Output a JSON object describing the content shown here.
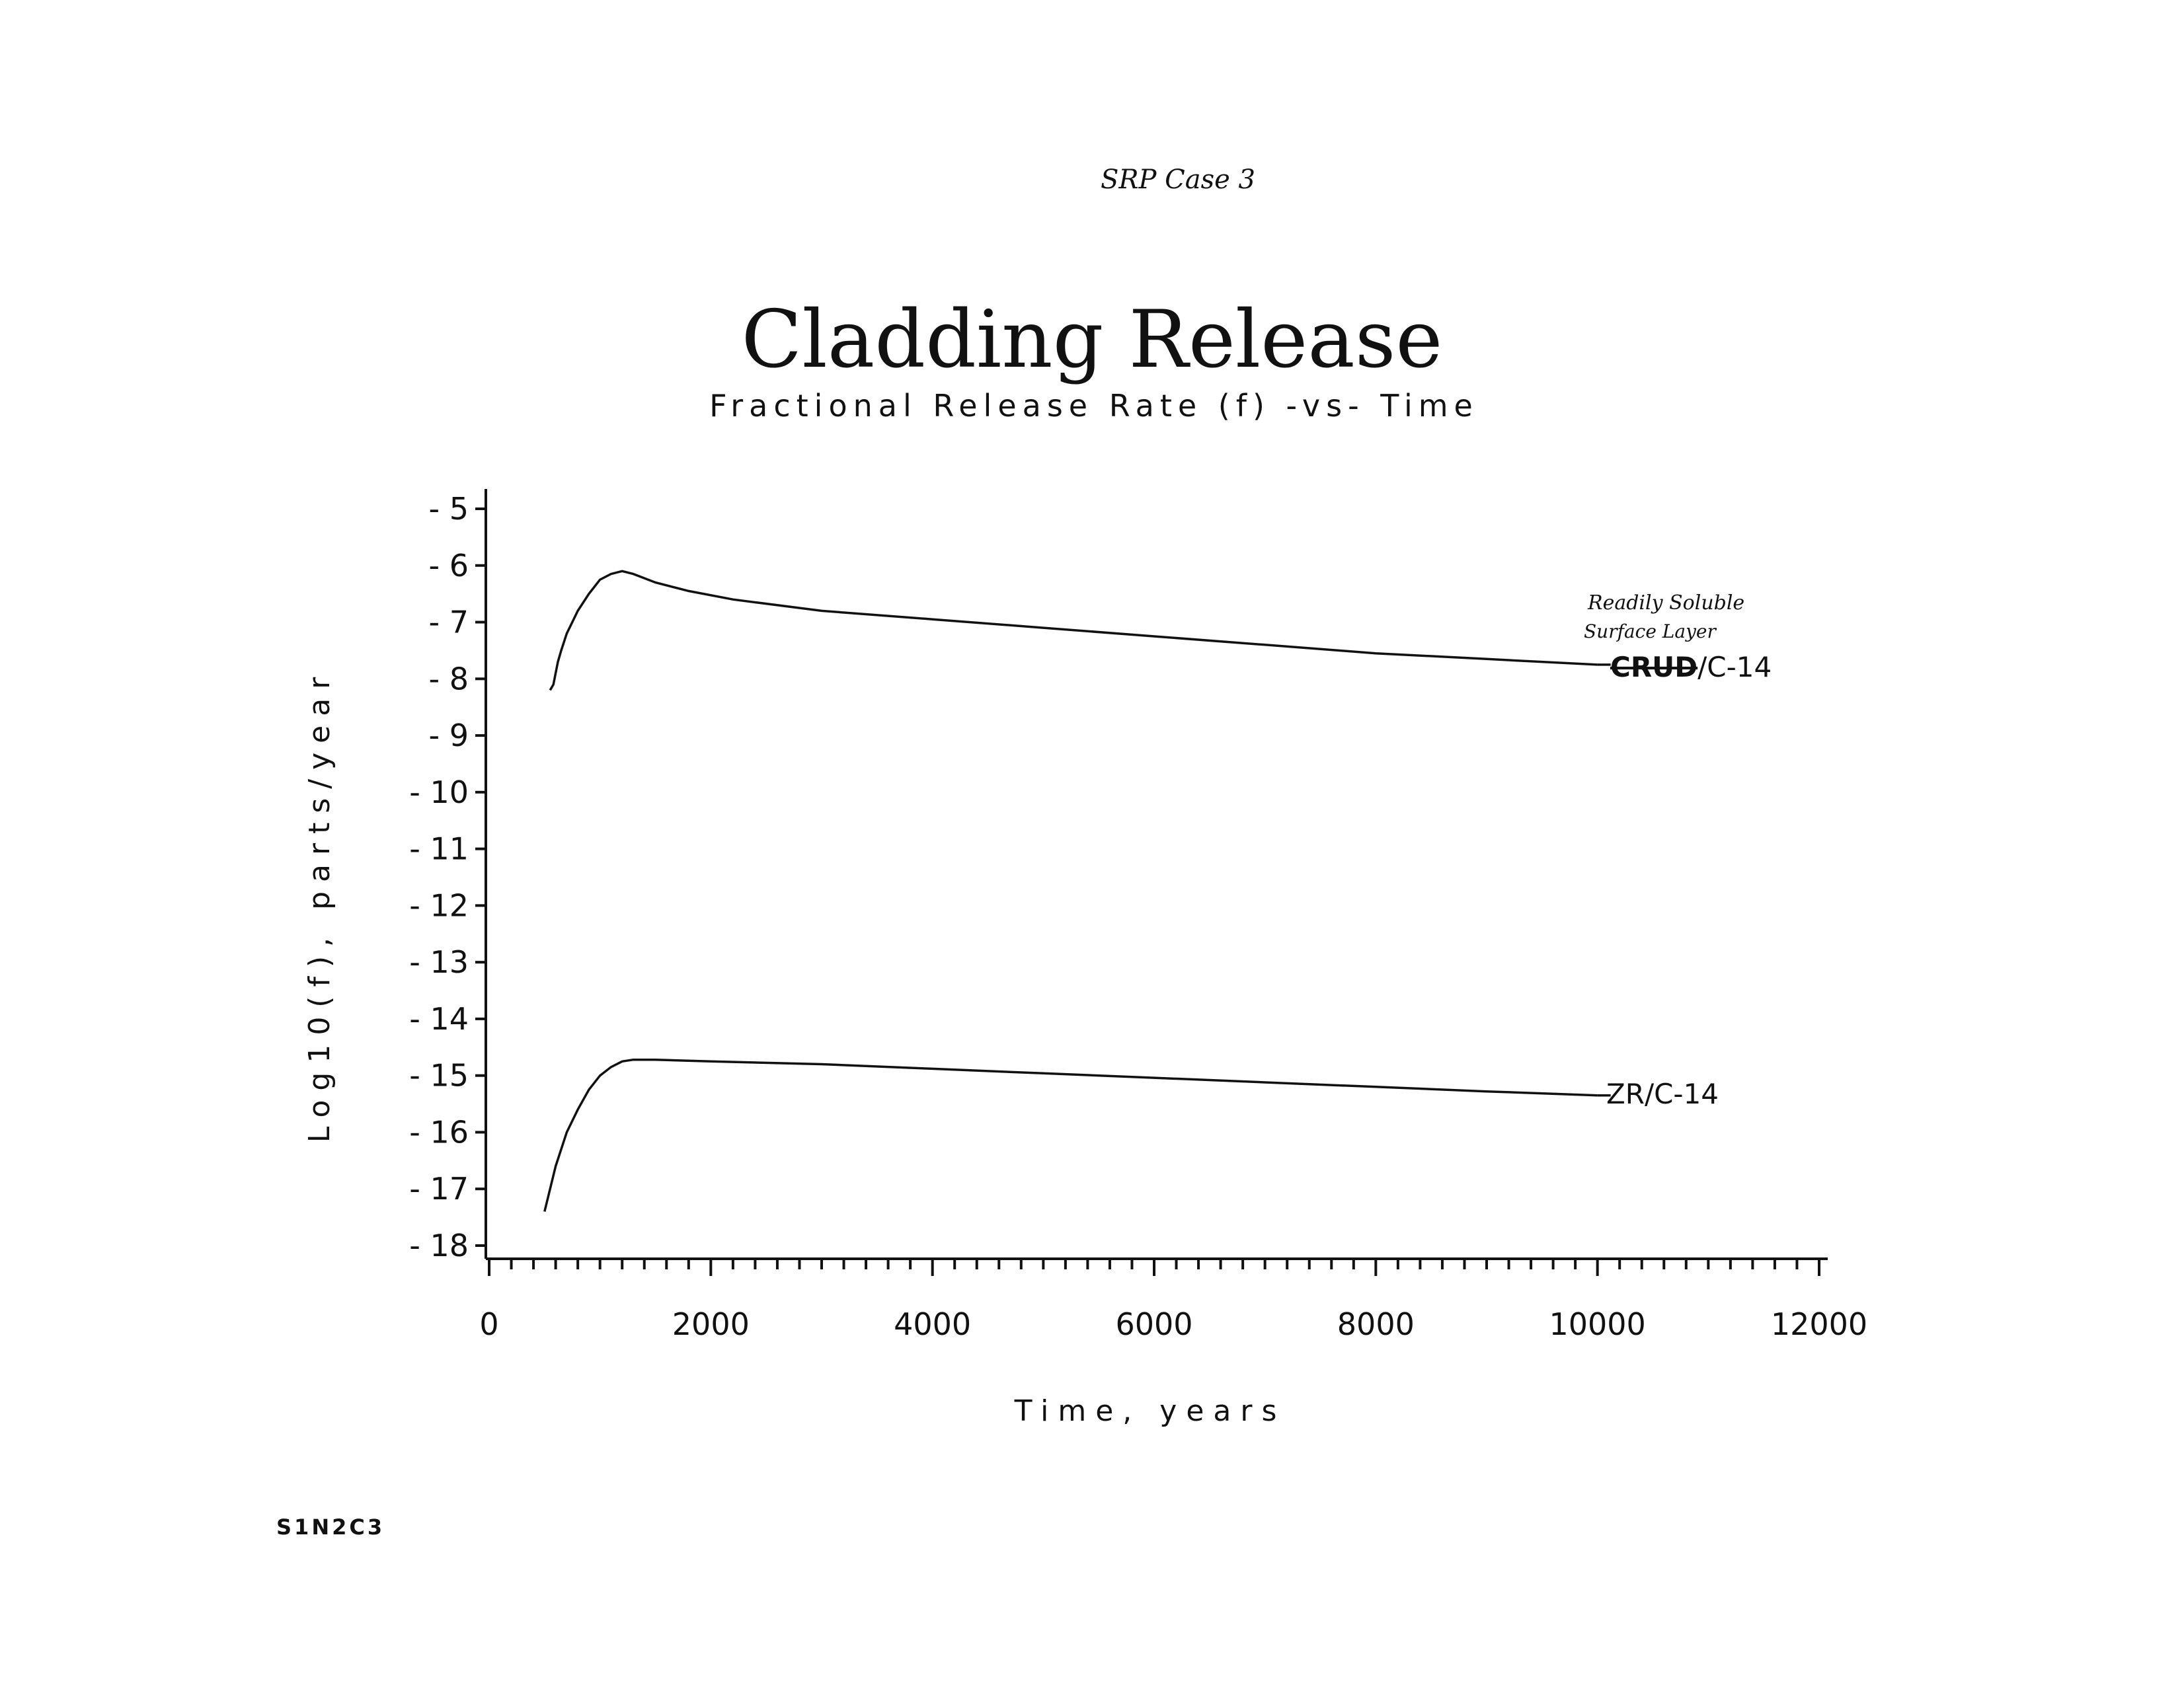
{
  "header": {
    "handwritten_note": "SRP    Case 3"
  },
  "footer": {
    "code": "S1N2C3"
  },
  "chart_data": {
    "type": "line",
    "title": "Cladding Release",
    "subtitle": "Fractional Release Rate (f) -vs- Time",
    "xlabel": "Time, years",
    "ylabel": "Log10(f), parts/year",
    "xlim": [
      0,
      12000
    ],
    "ylim": [
      -18,
      -5
    ],
    "x_ticks": [
      0,
      2000,
      4000,
      6000,
      8000,
      10000,
      12000
    ],
    "y_ticks": [
      -5,
      -6,
      -7,
      -8,
      -9,
      -10,
      -11,
      -12,
      -13,
      -14,
      -15,
      -16,
      -17,
      -18
    ],
    "grid": false,
    "legend": "none",
    "series": [
      {
        "name": "CRUD/C-14",
        "label_strikethrough": "CRUD",
        "label_suffix": "/C-14",
        "handwritten_annotation": [
          "Readily Soluble",
          "Surface Layer"
        ],
        "x": [
          550,
          580,
          600,
          620,
          650,
          700,
          750,
          800,
          900,
          1000,
          1100,
          1200,
          1300,
          1500,
          1800,
          2200,
          3000,
          4000,
          5000,
          6000,
          7000,
          8000,
          9000,
          10000
        ],
        "y": [
          -8.2,
          -8.1,
          -7.9,
          -7.7,
          -7.5,
          -7.2,
          -7.0,
          -6.8,
          -6.5,
          -6.25,
          -6.15,
          -6.1,
          -6.15,
          -6.3,
          -6.45,
          -6.6,
          -6.8,
          -6.95,
          -7.1,
          -7.25,
          -7.4,
          -7.55,
          -7.65,
          -7.75
        ]
      },
      {
        "name": "ZR/C-14",
        "x": [
          500,
          550,
          600,
          700,
          800,
          900,
          1000,
          1100,
          1200,
          1300,
          1500,
          2000,
          3000,
          4000,
          5000,
          6000,
          7000,
          8000,
          9000,
          10000
        ],
        "y": [
          -17.4,
          -17.0,
          -16.6,
          -16.0,
          -15.6,
          -15.25,
          -15.0,
          -14.85,
          -14.75,
          -14.72,
          -14.72,
          -14.75,
          -14.8,
          -14.88,
          -14.96,
          -15.04,
          -15.12,
          -15.2,
          -15.28,
          -15.35
        ]
      }
    ]
  }
}
